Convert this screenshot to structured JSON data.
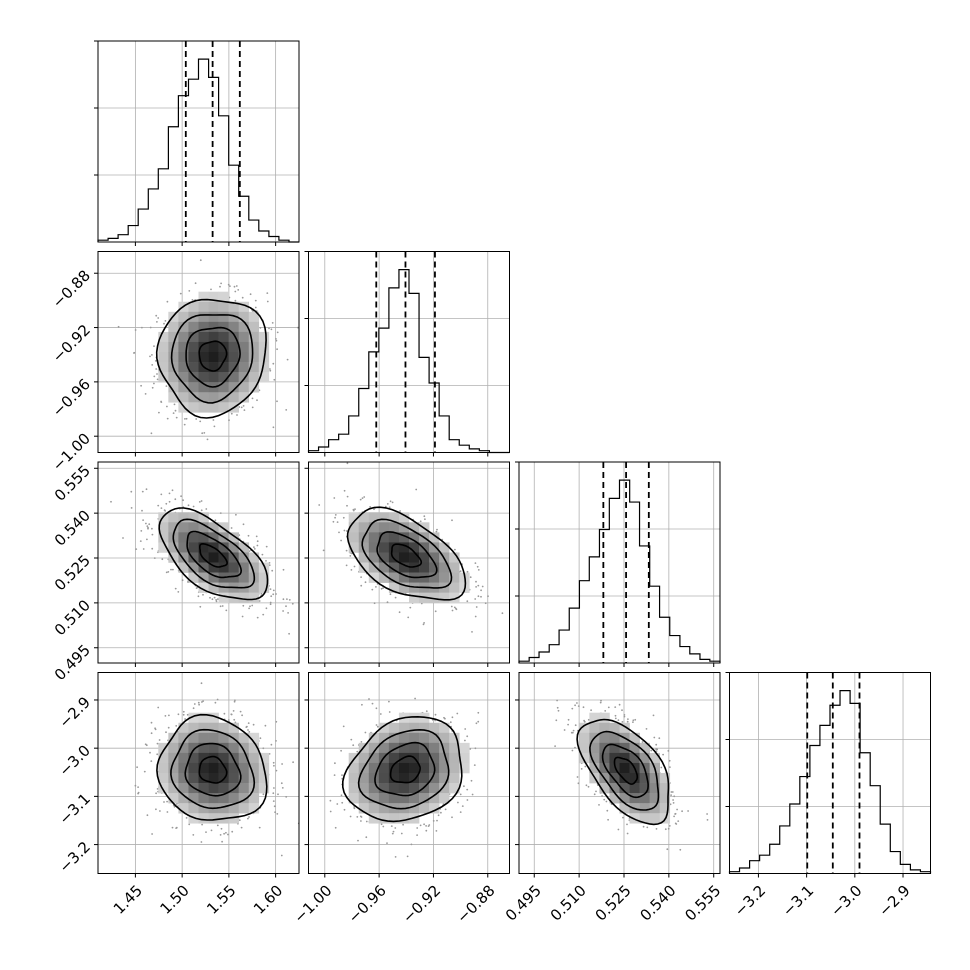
{
  "chart_data": {
    "type": "corner",
    "parameters": 4,
    "colors": {
      "density": "#000000",
      "points": "#9a9a9a",
      "grid": "#b0b0b0",
      "line": "#000000"
    },
    "grid": true,
    "axes": [
      {
        "range": [
          1.41,
          1.625
        ],
        "ticks": [
          "1.45",
          "1.50",
          "1.55",
          "1.60"
        ],
        "tick_values": [
          1.45,
          1.5,
          1.55,
          1.6
        ]
      },
      {
        "range": [
          -1.012,
          -0.864
        ],
        "ticks": [
          "−1.00",
          "−0.96",
          "−0.92",
          "−0.88"
        ],
        "tick_values": [
          -1.0,
          -0.96,
          -0.92,
          -0.88
        ]
      },
      {
        "range": [
          0.4899,
          0.5571
        ],
        "ticks": [
          "0.495",
          "0.510",
          "0.525",
          "0.540",
          "0.555"
        ],
        "tick_values": [
          0.495,
          0.51,
          0.525,
          0.54,
          0.555
        ]
      },
      {
        "range": [
          -3.26,
          -2.843
        ],
        "ticks": [
          "−3.2",
          "−3.1",
          "−3.0",
          "−2.9"
        ],
        "tick_values": [
          -3.2,
          -3.1,
          -3.0,
          -2.9
        ]
      }
    ],
    "marginals": [
      {
        "bin_edges": [
          1.41,
          1.4208,
          1.4315,
          1.4423,
          1.453,
          1.4638,
          1.4745,
          1.4853,
          1.496,
          1.5068,
          1.5175,
          1.5283,
          1.539,
          1.5498,
          1.5605,
          1.5713,
          1.582,
          1.5928,
          1.6035,
          1.6143,
          1.625
        ],
        "counts": [
          1,
          2,
          4,
          9,
          18,
          29,
          40,
          63,
          80,
          89,
          100,
          90,
          69,
          42,
          25,
          12,
          6,
          3,
          1,
          0
        ],
        "quantiles": [
          1.5039,
          1.5326,
          1.5617
        ]
      },
      {
        "bin_edges": [
          -1.012,
          -1.0046,
          -0.9972,
          -0.9898,
          -0.9824,
          -0.975,
          -0.9676,
          -0.9602,
          -0.9528,
          -0.9454,
          -0.938,
          -0.9306,
          -0.9232,
          -0.9158,
          -0.9084,
          -0.901,
          -0.8936,
          -0.8862,
          -0.8788,
          -0.8714,
          -0.864
        ],
        "counts": [
          1,
          3,
          7,
          10,
          20,
          35,
          55,
          68,
          90,
          100,
          87,
          52,
          38,
          20,
          7,
          4,
          2,
          1,
          0,
          0
        ],
        "quantiles": [
          -0.9621,
          -0.9406,
          -0.9189
        ]
      },
      {
        "bin_edges": [
          0.4899,
          0.4933,
          0.4966,
          0.5,
          0.5033,
          0.5067,
          0.5101,
          0.5134,
          0.5168,
          0.5201,
          0.5235,
          0.5269,
          0.5302,
          0.5336,
          0.5369,
          0.5403,
          0.5437,
          0.547,
          0.5504,
          0.5537,
          0.5571
        ],
        "counts": [
          1,
          3,
          6,
          10,
          18,
          30,
          45,
          58,
          73,
          90,
          100,
          88,
          64,
          42,
          25,
          15,
          9,
          5,
          2,
          1
        ],
        "quantiles": [
          0.5181,
          0.5257,
          0.5333
        ]
      },
      {
        "bin_edges": [
          -3.26,
          -3.2392,
          -3.2183,
          -3.1975,
          -3.1766,
          -3.1558,
          -3.1349,
          -3.1141,
          -3.0932,
          -3.0724,
          -3.0515,
          -3.0307,
          -3.0098,
          -2.989,
          -2.9681,
          -2.9473,
          -2.9264,
          -2.9056,
          -2.8847,
          -2.8639,
          -2.843
        ],
        "counts": [
          1,
          3,
          7,
          10,
          16,
          26,
          38,
          53,
          70,
          81,
          92,
          100,
          93,
          66,
          48,
          27,
          12,
          5,
          2,
          1
        ],
        "quantiles": [
          -3.0987,
          -3.0457,
          -2.9903
        ]
      }
    ],
    "joint_pairs": [
      [
        1,
        0
      ],
      [
        2,
        0
      ],
      [
        2,
        1
      ],
      [
        3,
        0
      ],
      [
        3,
        1
      ],
      [
        3,
        2
      ]
    ],
    "contour_levels": [
      0.118,
      0.393,
      0.675,
      0.865
    ]
  }
}
